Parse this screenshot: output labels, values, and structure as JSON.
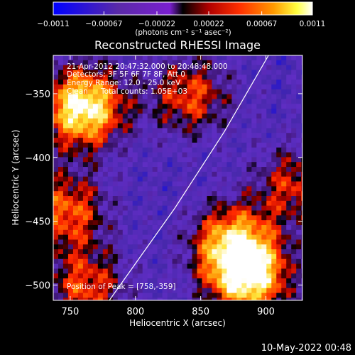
{
  "chart_data": {
    "type": "heatmap",
    "title": "Reconstructed RHESSI Image",
    "xlabel": "Heliocentric X (arcsec)",
    "ylabel": "Heliocentric Y (arcsec)",
    "xlim": [
      737,
      928
    ],
    "ylim": [
      -512,
      -320
    ],
    "x_ticks": [
      750,
      800,
      850,
      900
    ],
    "x_tick_labels": [
      "750",
      "800",
      "850",
      "900"
    ],
    "y_ticks": [
      -350,
      -400,
      -450,
      -500
    ],
    "y_tick_labels": [
      "−350",
      "−400",
      "−450",
      "−500"
    ],
    "colorbar": {
      "range": [
        -0.0011,
        0.0011
      ],
      "tick_labels": [
        "−0.0011",
        "−0.00067",
        "−0.00022",
        "0.00022",
        "0.00067",
        "0.0011"
      ],
      "tick_values": [
        -0.0011,
        -0.00067,
        -0.00022,
        0.00022,
        0.00067,
        0.0011
      ],
      "unit_label": "(photons cm⁻² s⁻¹ asec⁻²)",
      "colors": [
        "#0000ff",
        "#5a2aa8",
        "#7a1fd0",
        "#000000",
        "#b00000",
        "#ff3000",
        "#ff9a00",
        "#ffff40",
        "#ffffff"
      ]
    },
    "annotations": {
      "time_range": "21-Apr-2012 20:47:32.000 to 20:48:48.000",
      "detectors": "Detectors: 3F 5F 6F 7F 8F, Att 0",
      "energy": "Energy Range: 12.0 - 25.0 keV",
      "algorithm": "Clean",
      "total_counts": "Total counts: 1.05E+03",
      "peak": "Position of Peak = [758,-359]"
    },
    "limb_points": [
      [
        780,
        -512
      ],
      [
        830,
        -440
      ],
      [
        868,
        -380
      ],
      [
        902,
        -320
      ]
    ],
    "sources": [
      {
        "x": 758,
        "y": -359,
        "value": 0.0011
      },
      {
        "x": 885,
        "y": -492,
        "value": 0.0009
      },
      {
        "x": 872,
        "y": -465,
        "value": 0.0006
      },
      {
        "x": 745,
        "y": -440,
        "value": 0.0004
      },
      {
        "x": 760,
        "y": -500,
        "value": 0.0003
      },
      {
        "x": 840,
        "y": -350,
        "value": 0.0003
      },
      {
        "x": 920,
        "y": -420,
        "value": 0.0002
      }
    ],
    "footer_date": "10-May-2022 00:48"
  }
}
